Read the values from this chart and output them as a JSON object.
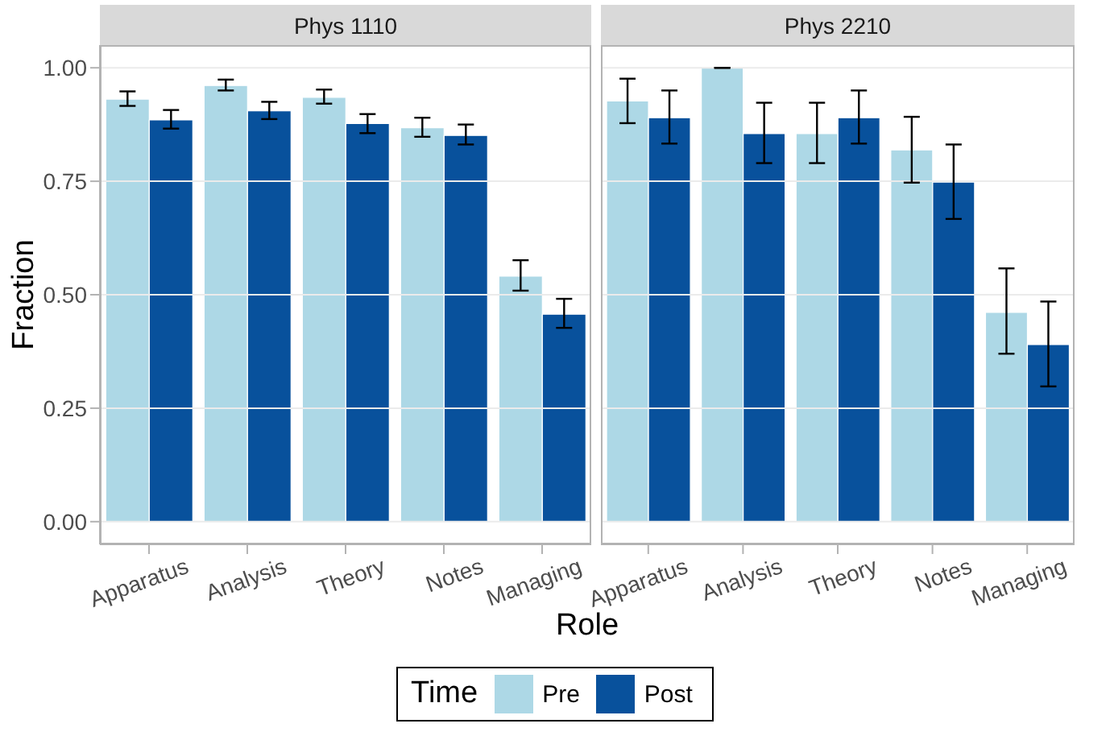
{
  "chart_data": [
    {
      "type": "bar",
      "title": "Phys 1110",
      "xlabel": "Role",
      "ylabel": "Fraction",
      "legend_title": "Time",
      "legend": "bottom",
      "grid": "y",
      "categories": [
        "Apparatus",
        "Analysis",
        "Theory",
        "Notes",
        "Managing"
      ],
      "ylim": [
        -0.05,
        1.05
      ],
      "yticks": [
        {
          "value": 0,
          "label": "0.00"
        },
        {
          "value": 0.25,
          "label": "0.25"
        },
        {
          "value": 0.5,
          "label": "0.50"
        },
        {
          "value": 0.75,
          "label": "0.75"
        },
        {
          "value": 1,
          "label": "1.00"
        }
      ],
      "series": [
        {
          "name": "Pre",
          "color": "#add8e6",
          "values": [
            0.931,
            0.961,
            0.935,
            0.868,
            0.541
          ],
          "errors": [
            [
              0.916,
              0.948
            ],
            [
              0.95,
              0.974
            ],
            [
              0.921,
              0.952
            ],
            [
              0.848,
              0.89
            ],
            [
              0.509,
              0.576
            ]
          ]
        },
        {
          "name": "Post",
          "color": "#08519c",
          "values": [
            0.885,
            0.905,
            0.877,
            0.851,
            0.457
          ],
          "errors": [
            [
              0.866,
              0.907
            ],
            [
              0.887,
              0.925
            ],
            [
              0.856,
              0.898
            ],
            [
              0.831,
              0.875
            ],
            [
              0.427,
              0.491
            ]
          ]
        }
      ]
    },
    {
      "type": "bar",
      "title": "Phys 2210",
      "grid": "y",
      "tick_labels": "x",
      "categories": [
        "Apparatus",
        "Analysis",
        "Theory",
        "Notes",
        "Managing"
      ],
      "ylim": [
        -0.05,
        1.05
      ],
      "yticks": [
        0,
        0.25,
        0.5,
        0.75,
        1
      ],
      "series": [
        {
          "color": "#add8e6",
          "values": [
            0.927,
            1.0,
            0.855,
            0.819,
            0.461
          ],
          "errors": [
            [
              0.878,
              0.976
            ],
            [
              1.0,
              1.0
            ],
            [
              0.79,
              0.923
            ],
            [
              0.747,
              0.892
            ],
            [
              0.37,
              0.558
            ]
          ]
        },
        {
          "color": "#08519c",
          "values": [
            0.89,
            0.855,
            0.89,
            0.748,
            0.39
          ],
          "errors": [
            [
              0.833,
              0.95
            ],
            [
              0.79,
              0.923
            ],
            [
              0.833,
              0.95
            ],
            [
              0.667,
              0.831
            ],
            [
              0.298,
              0.485
            ]
          ]
        }
      ]
    }
  ]
}
